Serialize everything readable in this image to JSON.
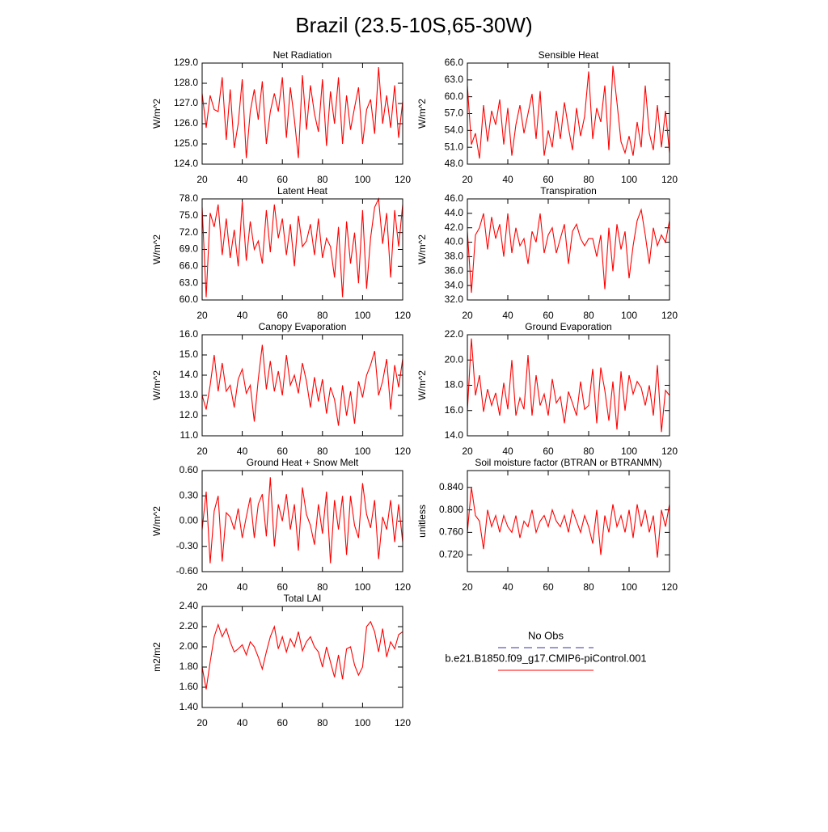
{
  "title": "Brazil (23.5-10S,65-30W)",
  "legend": [
    {
      "label": "No Obs",
      "color": "#3333aa",
      "dashed": true
    },
    {
      "label": "b.e21.B1850.f09_g17.CMIP6-piControl.001",
      "color": "#ff0000",
      "dashed": false
    }
  ],
  "chart_data": [
    {
      "type": "line",
      "title": "Net Radiation",
      "ylabel": "W/m^2",
      "color": "#ff0000",
      "x": [
        20,
        22,
        24,
        26,
        28,
        30,
        32,
        34,
        36,
        38,
        40,
        42,
        44,
        46,
        48,
        50,
        52,
        54,
        56,
        58,
        60,
        62,
        64,
        66,
        68,
        70,
        72,
        74,
        76,
        78,
        80,
        82,
        84,
        86,
        88,
        90,
        92,
        94,
        96,
        98,
        100,
        102,
        104,
        106,
        108,
        110,
        112,
        114,
        116,
        118,
        120
      ],
      "values": [
        127.5,
        125.8,
        127.4,
        126.7,
        126.6,
        128.3,
        125.2,
        127.7,
        124.8,
        126.0,
        128.2,
        124.3,
        126.6,
        127.7,
        126.2,
        128.1,
        125.0,
        126.6,
        127.5,
        126.6,
        128.3,
        125.3,
        127.8,
        126.2,
        124.3,
        128.4,
        125.7,
        127.9,
        126.5,
        125.6,
        128.2,
        124.9,
        127.6,
        126.0,
        128.3,
        125.0,
        127.4,
        125.7,
        126.8,
        127.8,
        125.0,
        126.7,
        127.2,
        125.5,
        128.8,
        126.0,
        127.4,
        125.8,
        127.9,
        125.3,
        127.1
      ],
      "xlim": [
        20,
        120
      ],
      "xticks": [
        20,
        40,
        60,
        80,
        100,
        120
      ],
      "ylim": [
        124,
        129
      ],
      "yticks": [
        {
          "value": 124,
          "label": "124.0"
        },
        {
          "value": 125,
          "label": "125.0"
        },
        {
          "value": 126,
          "label": "126.0"
        },
        {
          "value": 127,
          "label": "127.0"
        },
        {
          "value": 128,
          "label": "128.0"
        },
        {
          "value": 129,
          "label": "129.0"
        }
      ]
    },
    {
      "type": "line",
      "title": "Sensible Heat",
      "ylabel": "W/m^2",
      "color": "#ff0000",
      "x": [
        20,
        22,
        24,
        26,
        28,
        30,
        32,
        34,
        36,
        38,
        40,
        42,
        44,
        46,
        48,
        50,
        52,
        54,
        56,
        58,
        60,
        62,
        64,
        66,
        68,
        70,
        72,
        74,
        76,
        78,
        80,
        82,
        84,
        86,
        88,
        90,
        92,
        94,
        96,
        98,
        100,
        102,
        104,
        106,
        108,
        110,
        112,
        114,
        116,
        118,
        120
      ],
      "values": [
        62.0,
        51.5,
        53.5,
        49.0,
        58.5,
        52.0,
        57.5,
        55.0,
        59.5,
        51.5,
        58.0,
        49.5,
        55.0,
        58.5,
        53.5,
        57.0,
        60.5,
        52.5,
        61.0,
        49.5,
        54.0,
        51.0,
        57.5,
        52.5,
        59.0,
        54.5,
        50.5,
        58.0,
        53.0,
        56.5,
        64.5,
        52.5,
        58.0,
        55.5,
        62.0,
        50.5,
        65.5,
        59.0,
        52.0,
        50.0,
        53.0,
        49.5,
        55.5,
        51.0,
        62.0,
        53.5,
        50.5,
        58.5,
        51.0,
        57.5,
        50.0
      ],
      "xlim": [
        20,
        120
      ],
      "xticks": [
        20,
        40,
        60,
        80,
        100,
        120
      ],
      "ylim": [
        48,
        66
      ],
      "yticks": [
        {
          "value": 48,
          "label": "48.0"
        },
        {
          "value": 51,
          "label": "51.0"
        },
        {
          "value": 54,
          "label": "54.0"
        },
        {
          "value": 57,
          "label": "57.0"
        },
        {
          "value": 60,
          "label": "60.0"
        },
        {
          "value": 63,
          "label": "63.0"
        },
        {
          "value": 66,
          "label": "66.0"
        }
      ]
    },
    {
      "type": "line",
      "title": "Latent Heat",
      "ylabel": "W/m^2",
      "color": "#ff0000",
      "x": [
        20,
        22,
        24,
        26,
        28,
        30,
        32,
        34,
        36,
        38,
        40,
        42,
        44,
        46,
        48,
        50,
        52,
        54,
        56,
        58,
        60,
        62,
        64,
        66,
        68,
        70,
        72,
        74,
        76,
        78,
        80,
        82,
        84,
        86,
        88,
        90,
        92,
        94,
        96,
        98,
        100,
        102,
        104,
        106,
        108,
        110,
        112,
        114,
        116,
        118,
        120
      ],
      "values": [
        76.5,
        60.5,
        75.5,
        73.0,
        77.0,
        68.0,
        74.5,
        67.5,
        72.5,
        66.0,
        77.5,
        67.0,
        74.0,
        69.0,
        70.5,
        66.5,
        76.0,
        68.5,
        77.0,
        71.0,
        74.5,
        68.0,
        73.5,
        66.0,
        75.0,
        69.5,
        70.5,
        73.5,
        68.0,
        74.5,
        67.5,
        71.0,
        69.5,
        64.0,
        73.0,
        60.5,
        74.0,
        66.5,
        72.0,
        63.0,
        76.0,
        62.0,
        71.0,
        76.5,
        78.0,
        70.0,
        75.5,
        64.0,
        76.0,
        69.5,
        77.0
      ],
      "xlim": [
        20,
        120
      ],
      "xticks": [
        20,
        40,
        60,
        80,
        100,
        120
      ],
      "ylim": [
        60,
        78
      ],
      "yticks": [
        {
          "value": 60,
          "label": "60.0"
        },
        {
          "value": 63,
          "label": "63.0"
        },
        {
          "value": 66,
          "label": "66.0"
        },
        {
          "value": 69,
          "label": "69.0"
        },
        {
          "value": 72,
          "label": "72.0"
        },
        {
          "value": 75,
          "label": "75.0"
        },
        {
          "value": 78,
          "label": "78.0"
        }
      ]
    },
    {
      "type": "line",
      "title": "Transpiration",
      "ylabel": "W/m^2",
      "color": "#ff0000",
      "x": [
        20,
        22,
        24,
        26,
        28,
        30,
        32,
        34,
        36,
        38,
        40,
        42,
        44,
        46,
        48,
        50,
        52,
        54,
        56,
        58,
        60,
        62,
        64,
        66,
        68,
        70,
        72,
        74,
        76,
        78,
        80,
        82,
        84,
        86,
        88,
        90,
        92,
        94,
        96,
        98,
        100,
        102,
        104,
        106,
        108,
        110,
        112,
        114,
        116,
        118,
        120
      ],
      "values": [
        41.5,
        33.0,
        41.0,
        42.0,
        44.0,
        39.0,
        43.5,
        40.5,
        42.5,
        38.0,
        44.0,
        38.5,
        42.0,
        39.5,
        40.5,
        37.0,
        41.5,
        40.0,
        44.0,
        38.5,
        41.0,
        42.0,
        38.5,
        40.5,
        42.5,
        37.0,
        41.5,
        42.5,
        40.5,
        39.5,
        40.5,
        40.5,
        38.0,
        41.0,
        33.5,
        42.0,
        36.0,
        42.5,
        39.0,
        41.5,
        35.0,
        39.5,
        43.0,
        44.5,
        41.0,
        37.0,
        42.0,
        39.5,
        41.0,
        40.0,
        43.0
      ],
      "xlim": [
        20,
        120
      ],
      "xticks": [
        20,
        40,
        60,
        80,
        100,
        120
      ],
      "ylim": [
        32,
        46
      ],
      "yticks": [
        {
          "value": 32,
          "label": "32.0"
        },
        {
          "value": 34,
          "label": "34.0"
        },
        {
          "value": 36,
          "label": "36.0"
        },
        {
          "value": 38,
          "label": "38.0"
        },
        {
          "value": 40,
          "label": "40.0"
        },
        {
          "value": 42,
          "label": "42.0"
        },
        {
          "value": 44,
          "label": "44.0"
        },
        {
          "value": 46,
          "label": "46.0"
        }
      ]
    },
    {
      "type": "line",
      "title": "Canopy Evaporation",
      "ylabel": "W/m^2",
      "color": "#ff0000",
      "x": [
        20,
        22,
        24,
        26,
        28,
        30,
        32,
        34,
        36,
        38,
        40,
        42,
        44,
        46,
        48,
        50,
        52,
        54,
        56,
        58,
        60,
        62,
        64,
        66,
        68,
        70,
        72,
        74,
        76,
        78,
        80,
        82,
        84,
        86,
        88,
        90,
        92,
        94,
        96,
        98,
        100,
        102,
        104,
        106,
        108,
        110,
        112,
        114,
        116,
        118,
        120
      ],
      "values": [
        13.0,
        12.3,
        13.5,
        15.0,
        13.2,
        14.6,
        13.2,
        13.5,
        12.4,
        13.8,
        14.3,
        13.1,
        13.5,
        11.7,
        13.8,
        15.5,
        13.3,
        14.7,
        13.2,
        14.2,
        13.0,
        15.0,
        13.5,
        14.0,
        13.1,
        14.6,
        13.7,
        12.4,
        13.9,
        12.7,
        13.8,
        12.1,
        13.4,
        12.8,
        11.5,
        13.5,
        12.0,
        13.2,
        11.6,
        13.7,
        12.9,
        14.0,
        14.5,
        15.2,
        13.0,
        13.7,
        14.8,
        12.3,
        14.5,
        13.4,
        14.8
      ],
      "xlim": [
        20,
        120
      ],
      "xticks": [
        20,
        40,
        60,
        80,
        100,
        120
      ],
      "ylim": [
        11,
        16
      ],
      "yticks": [
        {
          "value": 11,
          "label": "11.0"
        },
        {
          "value": 12,
          "label": "12.0"
        },
        {
          "value": 13,
          "label": "13.0"
        },
        {
          "value": 14,
          "label": "14.0"
        },
        {
          "value": 15,
          "label": "15.0"
        },
        {
          "value": 16,
          "label": "16.0"
        }
      ]
    },
    {
      "type": "line",
      "title": "Ground Evaporation",
      "ylabel": "W/m^2",
      "color": "#ff0000",
      "x": [
        20,
        22,
        24,
        26,
        28,
        30,
        32,
        34,
        36,
        38,
        40,
        42,
        44,
        46,
        48,
        50,
        52,
        54,
        56,
        58,
        60,
        62,
        64,
        66,
        68,
        70,
        72,
        74,
        76,
        78,
        80,
        82,
        84,
        86,
        88,
        90,
        92,
        94,
        96,
        98,
        100,
        102,
        104,
        106,
        108,
        110,
        112,
        114,
        116,
        118,
        120
      ],
      "values": [
        16.0,
        21.7,
        17.2,
        18.8,
        15.9,
        17.7,
        16.4,
        17.4,
        15.6,
        18.2,
        16.1,
        20.0,
        15.6,
        17.0,
        16.1,
        20.4,
        15.6,
        18.8,
        16.4,
        17.3,
        15.6,
        18.5,
        16.6,
        17.1,
        15.0,
        17.5,
        16.6,
        15.6,
        18.3,
        16.1,
        16.4,
        19.3,
        15.0,
        19.4,
        17.6,
        15.2,
        18.3,
        14.5,
        19.1,
        16.0,
        18.8,
        17.3,
        18.3,
        17.8,
        16.4,
        18.0,
        15.6,
        19.6,
        14.3,
        17.6,
        17.2
      ],
      "xlim": [
        20,
        120
      ],
      "xticks": [
        20,
        40,
        60,
        80,
        100,
        120
      ],
      "ylim": [
        14,
        22
      ],
      "yticks": [
        {
          "value": 14,
          "label": "14.0"
        },
        {
          "value": 16,
          "label": "16.0"
        },
        {
          "value": 18,
          "label": "18.0"
        },
        {
          "value": 20,
          "label": "20.0"
        },
        {
          "value": 22,
          "label": "22.0"
        }
      ]
    },
    {
      "type": "line",
      "title": "Ground Heat + Snow Melt",
      "ylabel": "W/m^2",
      "color": "#ff0000",
      "x": [
        20,
        22,
        24,
        26,
        28,
        30,
        32,
        34,
        36,
        38,
        40,
        42,
        44,
        46,
        48,
        50,
        52,
        54,
        56,
        58,
        60,
        62,
        64,
        66,
        68,
        70,
        72,
        74,
        76,
        78,
        80,
        82,
        84,
        86,
        88,
        90,
        92,
        94,
        96,
        98,
        100,
        102,
        104,
        106,
        108,
        110,
        112,
        114,
        116,
        118,
        120
      ],
      "values": [
        -0.1,
        0.35,
        -0.5,
        0.12,
        0.3,
        -0.48,
        0.1,
        0.05,
        -0.1,
        0.15,
        -0.2,
        0.05,
        0.28,
        -0.2,
        0.2,
        0.32,
        -0.18,
        0.52,
        -0.3,
        0.2,
        0.0,
        0.32,
        -0.1,
        0.2,
        -0.35,
        0.4,
        0.08,
        -0.05,
        -0.28,
        0.2,
        -0.15,
        0.35,
        -0.5,
        0.25,
        -0.1,
        0.3,
        -0.4,
        0.3,
        -0.05,
        -0.2,
        0.45,
        0.08,
        -0.08,
        0.25,
        -0.45,
        0.05,
        -0.1,
        0.25,
        -0.25,
        0.2,
        -0.25
      ],
      "xlim": [
        20,
        120
      ],
      "xticks": [
        20,
        40,
        60,
        80,
        100,
        120
      ],
      "ylim": [
        -0.6,
        0.6
      ],
      "yticks": [
        {
          "value": -0.6,
          "label": "-0.60"
        },
        {
          "value": -0.3,
          "label": "-0.30"
        },
        {
          "value": 0,
          "label": "0.00"
        },
        {
          "value": 0.3,
          "label": "0.30"
        },
        {
          "value": 0.6,
          "label": "0.60"
        }
      ]
    },
    {
      "type": "line",
      "title": "Soil moisture factor (BTRAN or BTRANMN)",
      "ylabel": "unitless",
      "color": "#ff0000",
      "x": [
        20,
        22,
        24,
        26,
        28,
        30,
        32,
        34,
        36,
        38,
        40,
        42,
        44,
        46,
        48,
        50,
        52,
        54,
        56,
        58,
        60,
        62,
        64,
        66,
        68,
        70,
        72,
        74,
        76,
        78,
        80,
        82,
        84,
        86,
        88,
        90,
        92,
        94,
        96,
        98,
        100,
        102,
        104,
        106,
        108,
        110,
        112,
        114,
        116,
        118,
        120
      ],
      "values": [
        0.76,
        0.84,
        0.79,
        0.78,
        0.73,
        0.8,
        0.77,
        0.79,
        0.76,
        0.79,
        0.77,
        0.76,
        0.79,
        0.75,
        0.78,
        0.77,
        0.8,
        0.76,
        0.78,
        0.79,
        0.77,
        0.8,
        0.78,
        0.77,
        0.79,
        0.76,
        0.8,
        0.78,
        0.76,
        0.79,
        0.77,
        0.74,
        0.8,
        0.72,
        0.79,
        0.76,
        0.81,
        0.77,
        0.79,
        0.76,
        0.8,
        0.75,
        0.81,
        0.77,
        0.8,
        0.76,
        0.79,
        0.715,
        0.8,
        0.77,
        0.81
      ],
      "xlim": [
        20,
        120
      ],
      "xticks": [
        20,
        40,
        60,
        80,
        100,
        120
      ],
      "ylim": [
        0.69,
        0.87
      ],
      "yticks": [
        {
          "value": 0.72,
          "label": "0.720"
        },
        {
          "value": 0.76,
          "label": "0.760"
        },
        {
          "value": 0.8,
          "label": "0.800"
        },
        {
          "value": 0.84,
          "label": "0.840"
        }
      ]
    },
    {
      "type": "line",
      "title": "Total LAI",
      "ylabel": "m2/m2",
      "color": "#ff0000",
      "x": [
        20,
        22,
        24,
        26,
        28,
        30,
        32,
        34,
        36,
        38,
        40,
        42,
        44,
        46,
        48,
        50,
        52,
        54,
        56,
        58,
        60,
        62,
        64,
        66,
        68,
        70,
        72,
        74,
        76,
        78,
        80,
        82,
        84,
        86,
        88,
        90,
        92,
        94,
        96,
        98,
        100,
        102,
        104,
        106,
        108,
        110,
        112,
        114,
        116,
        118,
        120
      ],
      "values": [
        1.8,
        1.58,
        1.85,
        2.1,
        2.22,
        2.1,
        2.18,
        2.05,
        1.95,
        1.98,
        2.02,
        1.92,
        2.05,
        2.0,
        1.9,
        1.78,
        1.95,
        2.1,
        2.2,
        1.98,
        2.1,
        1.95,
        2.08,
        2.0,
        2.15,
        1.96,
        2.05,
        2.1,
        2.0,
        1.95,
        1.8,
        2.0,
        1.85,
        1.7,
        1.92,
        1.68,
        1.98,
        2.0,
        1.82,
        1.72,
        1.8,
        2.2,
        2.25,
        2.15,
        1.95,
        2.18,
        1.9,
        2.05,
        1.98,
        2.12,
        2.15
      ],
      "xlim": [
        20,
        120
      ],
      "xticks": [
        20,
        40,
        60,
        80,
        100,
        120
      ],
      "ylim": [
        1.4,
        2.4
      ],
      "yticks": [
        {
          "value": 1.4,
          "label": "1.40"
        },
        {
          "value": 1.6,
          "label": "1.60"
        },
        {
          "value": 1.8,
          "label": "1.80"
        },
        {
          "value": 2.0,
          "label": "2.00"
        },
        {
          "value": 2.2,
          "label": "2.20"
        },
        {
          "value": 2.4,
          "label": "2.40"
        }
      ]
    }
  ]
}
